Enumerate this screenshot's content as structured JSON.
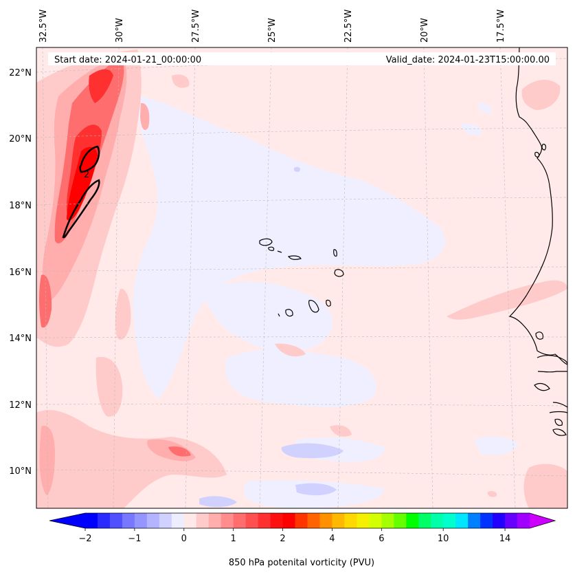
{
  "header": {
    "start_date": "Start date: 2024-01-21_00:00:00",
    "valid_date": "Valid_date: 2024-01-23T15:00:00.00"
  },
  "map": {
    "lon_labels": [
      "32.5°W",
      "30°W",
      "27.5°W",
      "25°W",
      "22.5°W",
      "20°W",
      "17.5°W"
    ],
    "lat_labels": [
      "22°N",
      "20°N",
      "18°N",
      "16°N",
      "14°N",
      "12°N",
      "10°N"
    ],
    "contour_label": "2",
    "field": "850 hPa potential vorticity",
    "islands": "Cape Verde",
    "coastline": "West Africa"
  },
  "colorbar": {
    "ticks": [
      "−2",
      "−1",
      "0",
      "1",
      "2",
      "4",
      "6",
      "10",
      "14"
    ],
    "label": "850 hPa potenital vorticity (PVU)",
    "colors": [
      "#0000ff",
      "#2a2aff",
      "#5050ff",
      "#7777ff",
      "#9595ff",
      "#b3b3ff",
      "#d1d1ff",
      "#ededff",
      "#ffe8e8",
      "#ffcaca",
      "#ffadad",
      "#ff8d8d",
      "#ff6e6e",
      "#ff5050",
      "#ff3030",
      "#ff1010",
      "#ff0000",
      "#ff3500",
      "#ff6400",
      "#ff9000",
      "#ffb800",
      "#ffd800",
      "#f4f000",
      "#d4ff00",
      "#a6ff00",
      "#66ff00",
      "#00ff00",
      "#00ff66",
      "#00ffaa",
      "#00ffcc",
      "#00e6ff",
      "#0080ff",
      "#0033ff",
      "#2200ff",
      "#6600ff",
      "#a000ff"
    ],
    "extend_low_color": "#0000ff",
    "extend_high_color": "#cc00ff"
  }
}
